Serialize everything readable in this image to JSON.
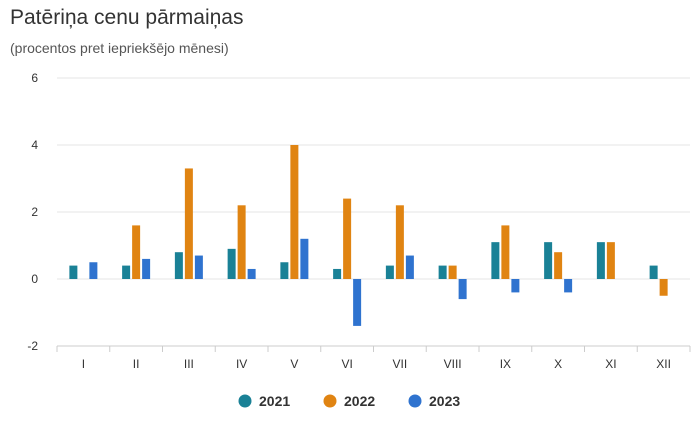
{
  "title": "Patēriņa cenu pārmaiņas",
  "subtitle": "(procentos pret iepriekšējo mēnesi)",
  "chart_data": {
    "type": "bar",
    "categories": [
      "I",
      "II",
      "III",
      "IV",
      "V",
      "VI",
      "VII",
      "VIII",
      "IX",
      "X",
      "XI",
      "XII"
    ],
    "series": [
      {
        "name": "2021",
        "color": "#1a8196",
        "values": [
          0.4,
          0.4,
          0.8,
          0.9,
          0.5,
          0.3,
          0.4,
          0.4,
          1.1,
          1.1,
          1.1,
          0.4
        ]
      },
      {
        "name": "2022",
        "color": "#e08412",
        "values": [
          null,
          1.6,
          3.3,
          2.2,
          4.0,
          2.4,
          2.2,
          0.4,
          1.6,
          0.8,
          1.1,
          -0.5
        ]
      },
      {
        "name": "2023",
        "color": "#2f73cf",
        "values": [
          0.5,
          0.6,
          0.7,
          0.3,
          1.2,
          -1.4,
          0.7,
          -0.6,
          -0.4,
          -0.4,
          null,
          null
        ]
      }
    ],
    "ylim": [
      -2,
      6
    ],
    "yticks": [
      -2,
      0,
      2,
      4,
      6
    ],
    "grid": true,
    "legend_position": "bottom-center"
  }
}
